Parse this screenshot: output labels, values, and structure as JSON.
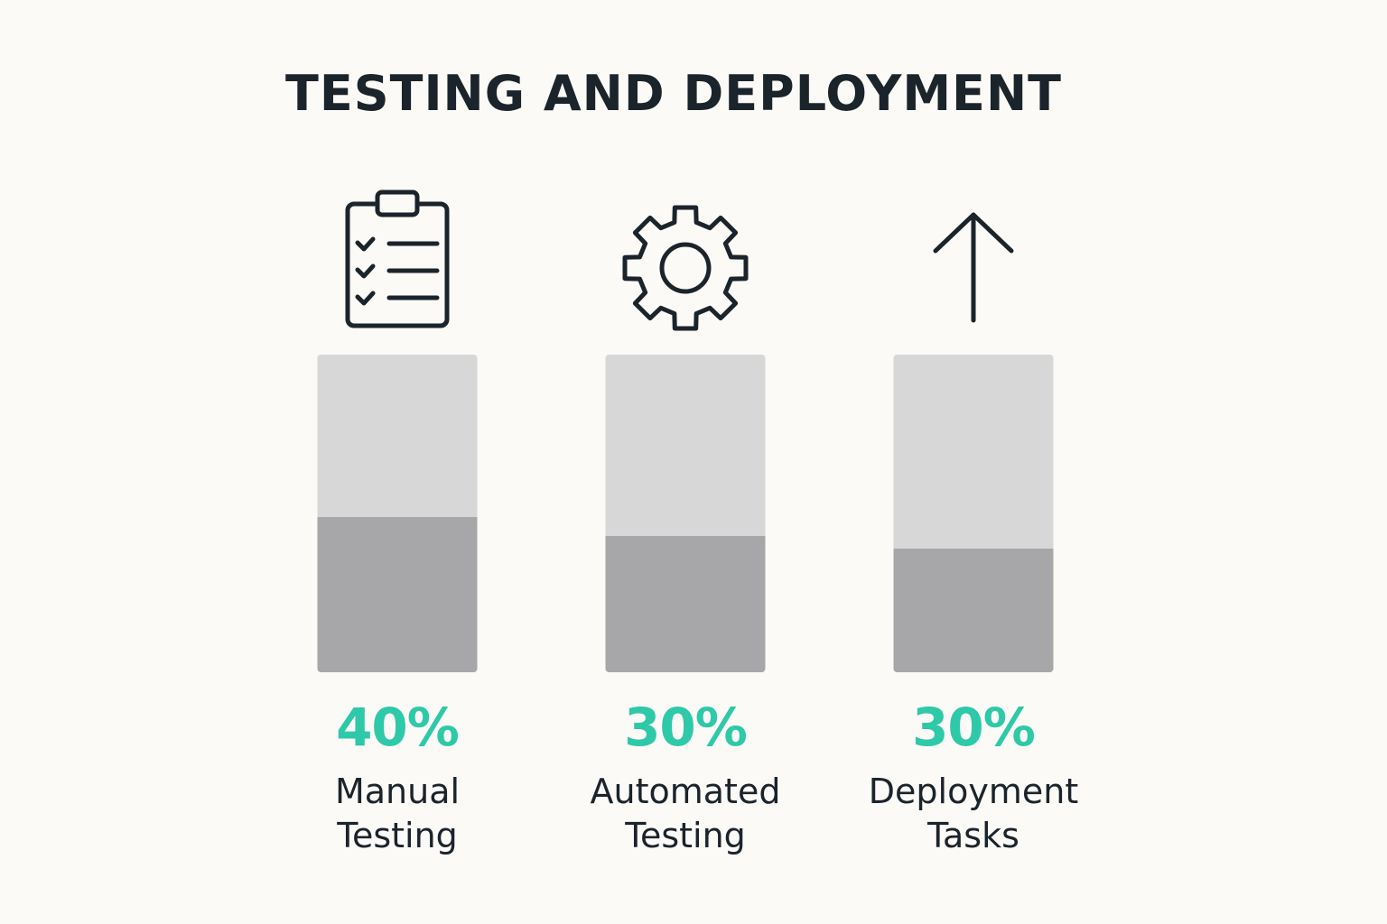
{
  "title": "TESTING AND DEPLOYMENT",
  "colors": {
    "accent": "#2ec9a8",
    "bar_track": "#d7d7d7",
    "bar_fill": "#a7a7a9",
    "text": "#1b232b",
    "background": "#fbfaf7"
  },
  "chart_data": {
    "type": "bar",
    "title": "TESTING AND DEPLOYMENT",
    "categories": [
      "Manual Testing",
      "Automated Testing",
      "Deployment Tasks"
    ],
    "values": [
      40,
      30,
      30
    ],
    "value_labels": [
      "40%",
      "30%",
      "30%"
    ],
    "ylim": [
      0,
      100
    ],
    "items": [
      {
        "icon": "clipboard-checklist-icon",
        "value": 40,
        "value_label": "40%",
        "label_line1": "Manual",
        "label_line2": "Testing",
        "fill_fraction": 0.49
      },
      {
        "icon": "gear-icon",
        "value": 30,
        "value_label": "30%",
        "label_line1": "Automated",
        "label_line2": "Testing",
        "fill_fraction": 0.43
      },
      {
        "icon": "up-arrow-icon",
        "value": 30,
        "value_label": "30%",
        "label_line1": "Deployment",
        "label_line2": "Tasks",
        "fill_fraction": 0.39
      }
    ]
  }
}
